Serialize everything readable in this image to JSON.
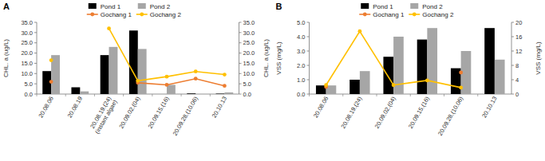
{
  "chart_data": [
    {
      "type": "bar",
      "title": "A",
      "y_label": "CHL. a (ug/L)",
      "y2_label": "CHL. a (ug/L)",
      "categories": [
        "20.08.06",
        "20.08.19",
        "20.08.19.(24)\n(instant algae)",
        "20.09.02.(04)",
        "20.09.15.(16)",
        "20.09.28.(10.06)",
        "20.10.13"
      ],
      "ylim": [
        0,
        35
      ],
      "yticks": [
        {
          "value": 0,
          "label": "0.0"
        },
        {
          "value": 5,
          "label": "5.0"
        },
        {
          "value": 10,
          "label": "10.0"
        },
        {
          "value": 15,
          "label": "15.0"
        },
        {
          "value": 20,
          "label": "20.0"
        },
        {
          "value": 25,
          "label": "25.0"
        },
        {
          "value": 30,
          "label": "30.0"
        },
        {
          "value": 35,
          "label": "35.0"
        }
      ],
      "y2lim": [
        0,
        35
      ],
      "y2ticks": [
        {
          "value": 0,
          "label": "0.0"
        },
        {
          "value": 5,
          "label": "5.0"
        },
        {
          "value": 10,
          "label": "10.0"
        },
        {
          "value": 15,
          "label": "15.0"
        },
        {
          "value": 20,
          "label": "20.0"
        },
        {
          "value": 25,
          "label": "25.0"
        },
        {
          "value": 30,
          "label": "30.0"
        },
        {
          "value": 35,
          "label": "35.0"
        }
      ],
      "grid": false,
      "legend": "top",
      "series": [
        {
          "name": "Pond 1",
          "type": "bar",
          "color": "#000000",
          "values": [
            11.2,
            3.3,
            19.0,
            31.0,
            0,
            0.3,
            0.2
          ]
        },
        {
          "name": "Pond 2",
          "type": "bar",
          "color": "#a6a6a6",
          "values": [
            19.0,
            1.3,
            23.0,
            22.0,
            4.5,
            0,
            0.8
          ]
        },
        {
          "name": "Gochang 1",
          "type": "line",
          "axis": "y2",
          "color": "#ed7d31",
          "marker": "circle",
          "values": [
            6.0,
            null,
            null,
            5.5,
            4.5,
            7.5,
            4.0
          ]
        },
        {
          "name": "Gochang 2",
          "type": "line",
          "axis": "y2",
          "color": "#ffc000",
          "marker": "circle",
          "values": [
            16.5,
            null,
            32.0,
            6.5,
            8.5,
            11.0,
            9.5
          ]
        }
      ]
    },
    {
      "type": "bar",
      "title": "B",
      "y_label": "VSS (mg/L)",
      "y2_label": "VSS (mg/L)",
      "categories": [
        "20.08.06",
        "20.08.19.(24)",
        "20.09.02.(04)",
        "20.09.15.(16)",
        "20.09.28.(10.06)",
        "20.10.13"
      ],
      "ylim": [
        0,
        5
      ],
      "yticks": [
        {
          "value": 0,
          "label": "0.0"
        },
        {
          "value": 1,
          "label": "1.0"
        },
        {
          "value": 2,
          "label": "2.0"
        },
        {
          "value": 3,
          "label": "3.0"
        },
        {
          "value": 4,
          "label": "4.0"
        },
        {
          "value": 5,
          "label": "5.0"
        }
      ],
      "y2lim": [
        0,
        20
      ],
      "y2ticks": [
        0,
        4,
        8,
        12,
        16,
        20
      ],
      "grid": false,
      "legend": "top",
      "series": [
        {
          "name": "Pond 1",
          "type": "bar",
          "color": "#000000",
          "values": [
            0.6,
            1.0,
            2.6,
            3.8,
            1.8,
            4.6
          ]
        },
        {
          "name": "Pond 2",
          "type": "bar",
          "color": "#a6a6a6",
          "values": [
            0.6,
            1.6,
            4.0,
            4.6,
            3.0,
            2.4
          ]
        },
        {
          "name": "Gochang 1",
          "type": "line",
          "axis": "y2",
          "color": "#ed7d31",
          "marker": "circle",
          "values": [
            2.0,
            null,
            null,
            null,
            6.0,
            null
          ]
        },
        {
          "name": "Gochang 2",
          "type": "line",
          "axis": "y2",
          "color": "#ffc000",
          "marker": "circle",
          "values": [
            2.5,
            17.5,
            2.5,
            3.8,
            1.8,
            null
          ]
        }
      ]
    }
  ]
}
